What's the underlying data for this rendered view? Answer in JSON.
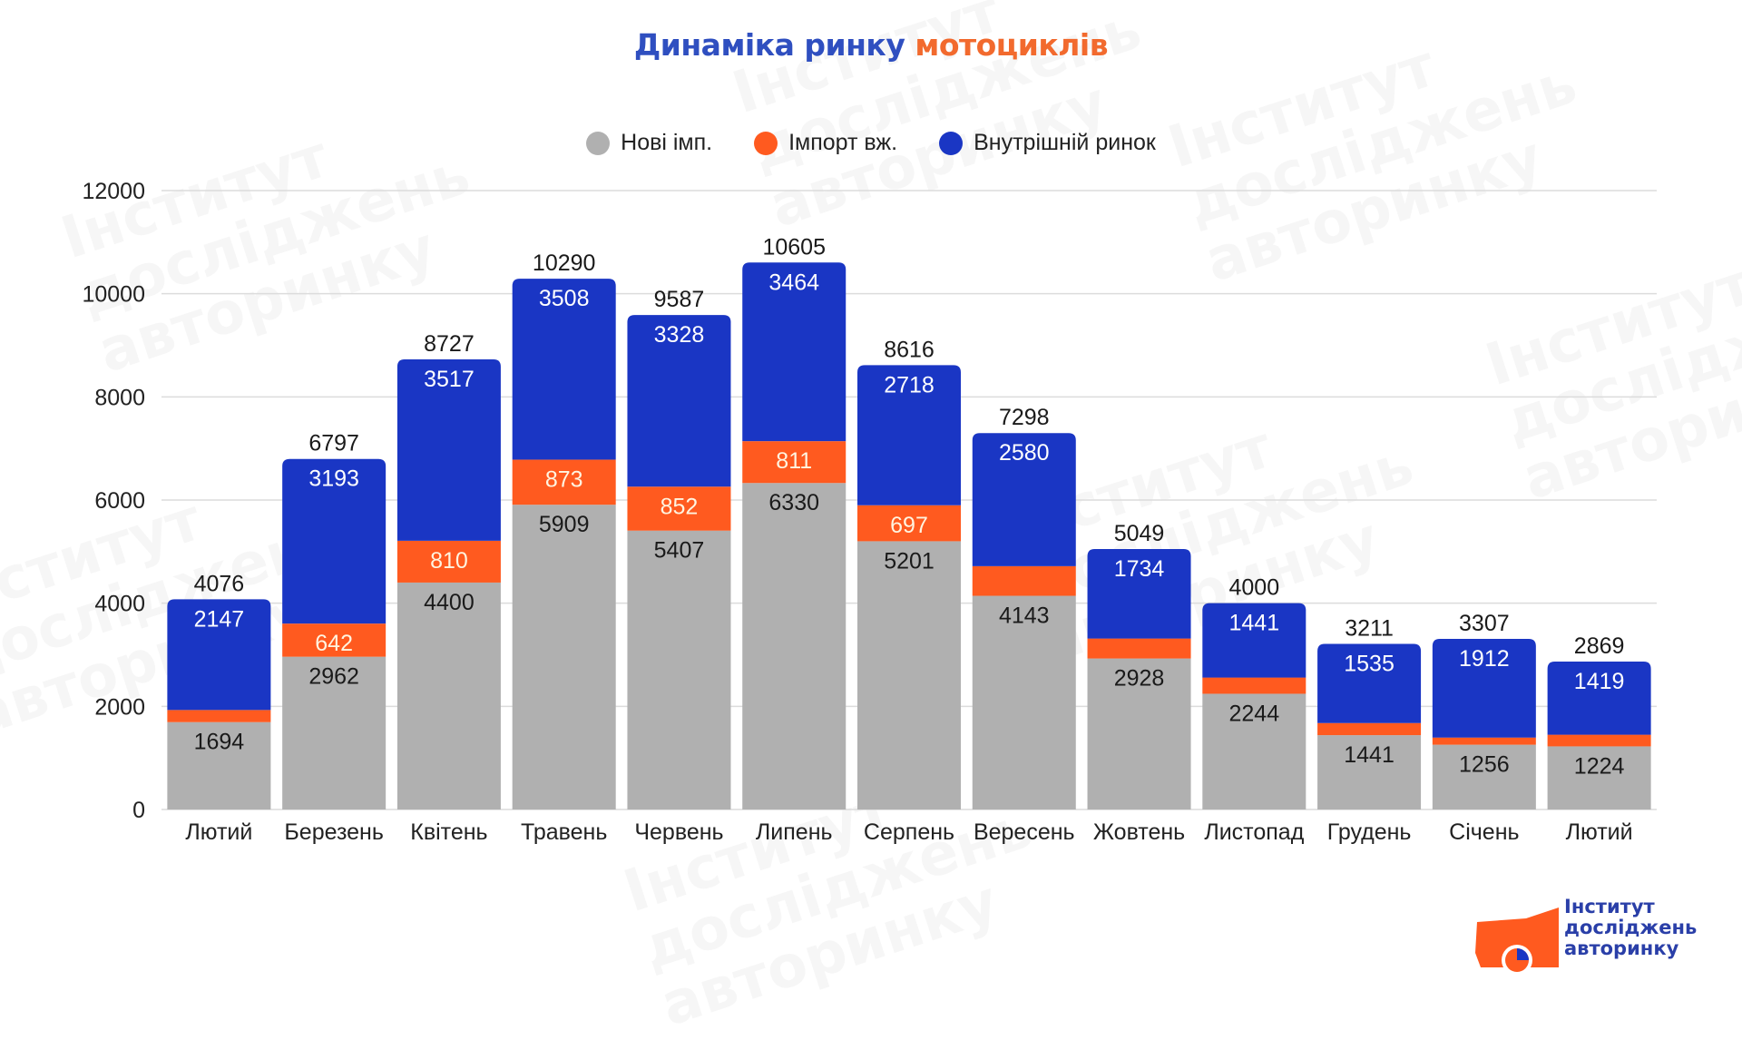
{
  "chart_data": {
    "type": "bar",
    "stacked": true,
    "title_part1": "Динаміка ринку",
    "title_part2": "мотоциклів",
    "xlabel": "",
    "ylabel": "",
    "ylim": [
      0,
      12000
    ],
    "yticks": [
      0,
      2000,
      4000,
      6000,
      8000,
      10000,
      12000
    ],
    "grid": true,
    "legend_position": "top-center",
    "categories": [
      "Лютий",
      "Березень",
      "Квітень",
      "Травень",
      "Червень",
      "Липень",
      "Серпень",
      "Вересень",
      "Жовтень",
      "Листопад",
      "Грудень",
      "Січень",
      "Лютий"
    ],
    "series": [
      {
        "name": "Нові імп.",
        "color": "#b0b0b0",
        "label_color": "#1a1a1a",
        "values": [
          1694,
          2962,
          4400,
          5909,
          5407,
          6330,
          5201,
          4143,
          2928,
          2244,
          1441,
          1256,
          1224
        ],
        "labels_shown": [
          true,
          true,
          true,
          true,
          true,
          true,
          true,
          true,
          true,
          true,
          true,
          true,
          true
        ]
      },
      {
        "name": "Імпорт вж.",
        "color": "#ff5a1f",
        "label_color": "#fff4e0",
        "values": [
          235,
          642,
          810,
          873,
          852,
          811,
          697,
          575,
          387,
          315,
          235,
          139,
          226
        ],
        "labels_shown": [
          false,
          true,
          true,
          true,
          true,
          true,
          true,
          false,
          false,
          false,
          false,
          false,
          false
        ]
      },
      {
        "name": "Внутрішній ринок",
        "color": "#1a36c4",
        "label_color": "#ffffff",
        "values": [
          2147,
          3193,
          3517,
          3508,
          3328,
          3464,
          2718,
          2580,
          1734,
          1441,
          1535,
          1912,
          1419
        ],
        "labels_shown": [
          true,
          true,
          true,
          true,
          true,
          true,
          true,
          true,
          true,
          true,
          true,
          true,
          true
        ]
      }
    ],
    "totals": [
      4076,
      6797,
      8727,
      10290,
      9587,
      10605,
      8616,
      7298,
      5049,
      4000,
      3211,
      3307,
      2869
    ]
  },
  "logo": {
    "line1": "Інститут",
    "line2": "досліджень",
    "line3": "авторинку"
  },
  "watermark_text": "Інститут\nдосліджень\nавторинку"
}
